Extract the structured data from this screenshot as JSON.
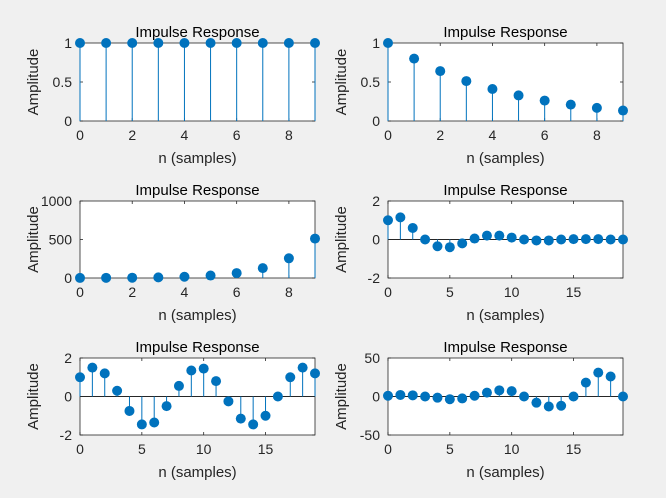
{
  "colors": {
    "stem": "#0072bd",
    "marker": "#0072bd",
    "axes": "#262626",
    "background": "#f0f0f0"
  },
  "chart_data": [
    {
      "type": "stem",
      "title": "Impulse Response",
      "xlabel": "n (samples)",
      "ylabel": "Amplitude",
      "xlim": [
        0,
        9
      ],
      "ylim": [
        0,
        1
      ],
      "xticks": [
        0,
        2,
        4,
        6,
        8
      ],
      "yticks": [
        0,
        0.5,
        1
      ],
      "ytick_labels": [
        "0",
        "0.5",
        "1"
      ],
      "x": [
        0,
        1,
        2,
        3,
        4,
        5,
        6,
        7,
        8,
        9
      ],
      "values": [
        1,
        1,
        1,
        1,
        1,
        1,
        1,
        1,
        1,
        1
      ]
    },
    {
      "type": "stem",
      "title": "Impulse Response",
      "xlabel": "n (samples)",
      "ylabel": "Amplitude",
      "xlim": [
        0,
        9
      ],
      "ylim": [
        0,
        1
      ],
      "xticks": [
        0,
        2,
        4,
        6,
        8
      ],
      "yticks": [
        0,
        0.5,
        1
      ],
      "ytick_labels": [
        "0",
        "0.5",
        "1"
      ],
      "x": [
        0,
        1,
        2,
        3,
        4,
        5,
        6,
        7,
        8,
        9
      ],
      "values": [
        1,
        0.8,
        0.64,
        0.512,
        0.41,
        0.328,
        0.262,
        0.21,
        0.168,
        0.134
      ]
    },
    {
      "type": "stem",
      "title": "Impulse Response",
      "xlabel": "n (samples)",
      "ylabel": "Amplitude",
      "xlim": [
        0,
        9
      ],
      "ylim": [
        0,
        1000
      ],
      "xticks": [
        0,
        2,
        4,
        6,
        8
      ],
      "yticks": [
        0,
        500,
        1000
      ],
      "ytick_labels": [
        "0",
        "500",
        "1000"
      ],
      "x": [
        0,
        1,
        2,
        3,
        4,
        5,
        6,
        7,
        8,
        9
      ],
      "values": [
        1,
        2,
        4,
        8,
        16,
        32,
        64,
        128,
        256,
        512
      ]
    },
    {
      "type": "stem",
      "title": "Impulse Response",
      "xlabel": "n (samples)",
      "ylabel": "Amplitude",
      "xlim": [
        0,
        19
      ],
      "ylim": [
        -2,
        2
      ],
      "xticks": [
        0,
        5,
        10,
        15
      ],
      "yticks": [
        -2,
        0,
        2
      ],
      "ytick_labels": [
        "-2",
        "0",
        "2"
      ],
      "x": [
        0,
        1,
        2,
        3,
        4,
        5,
        6,
        7,
        8,
        9,
        10,
        11,
        12,
        13,
        14,
        15,
        16,
        17,
        18,
        19
      ],
      "values": [
        1,
        1.15,
        0.6,
        0,
        -0.35,
        -0.4,
        -0.2,
        0.05,
        0.2,
        0.2,
        0.1,
        0,
        -0.05,
        -0.05,
        0,
        0.02,
        0.02,
        0.02,
        0,
        0
      ]
    },
    {
      "type": "stem",
      "title": "Impulse Response",
      "xlabel": "n (samples)",
      "ylabel": "Amplitude",
      "xlim": [
        0,
        19
      ],
      "ylim": [
        -2,
        2
      ],
      "xticks": [
        0,
        5,
        10,
        15
      ],
      "yticks": [
        -2,
        0,
        2
      ],
      "ytick_labels": [
        "-2",
        "0",
        "2"
      ],
      "x": [
        0,
        1,
        2,
        3,
        4,
        5,
        6,
        7,
        8,
        9,
        10,
        11,
        12,
        13,
        14,
        15,
        16,
        17,
        18,
        19
      ],
      "values": [
        1,
        1.5,
        1.2,
        0.3,
        -0.75,
        -1.45,
        -1.35,
        -0.5,
        0.55,
        1.35,
        1.45,
        0.8,
        -0.25,
        -1.15,
        -1.45,
        -1,
        0,
        1,
        1.5,
        1.2
      ]
    },
    {
      "type": "stem",
      "title": "Impulse Response",
      "xlabel": "n (samples)",
      "ylabel": "Amplitude",
      "xlim": [
        0,
        19
      ],
      "ylim": [
        -50,
        50
      ],
      "xticks": [
        0,
        5,
        10,
        15
      ],
      "yticks": [
        -50,
        0,
        50
      ],
      "ytick_labels": [
        "-50",
        "0",
        "50"
      ],
      "x": [
        0,
        1,
        2,
        3,
        4,
        5,
        6,
        7,
        8,
        9,
        10,
        11,
        12,
        13,
        14,
        15,
        16,
        17,
        18,
        19
      ],
      "values": [
        1,
        2,
        1.5,
        0,
        -1.5,
        -3.5,
        -2.5,
        1,
        5,
        8,
        7,
        0,
        -8,
        -13,
        -12,
        0,
        18,
        31,
        26,
        0
      ]
    }
  ]
}
